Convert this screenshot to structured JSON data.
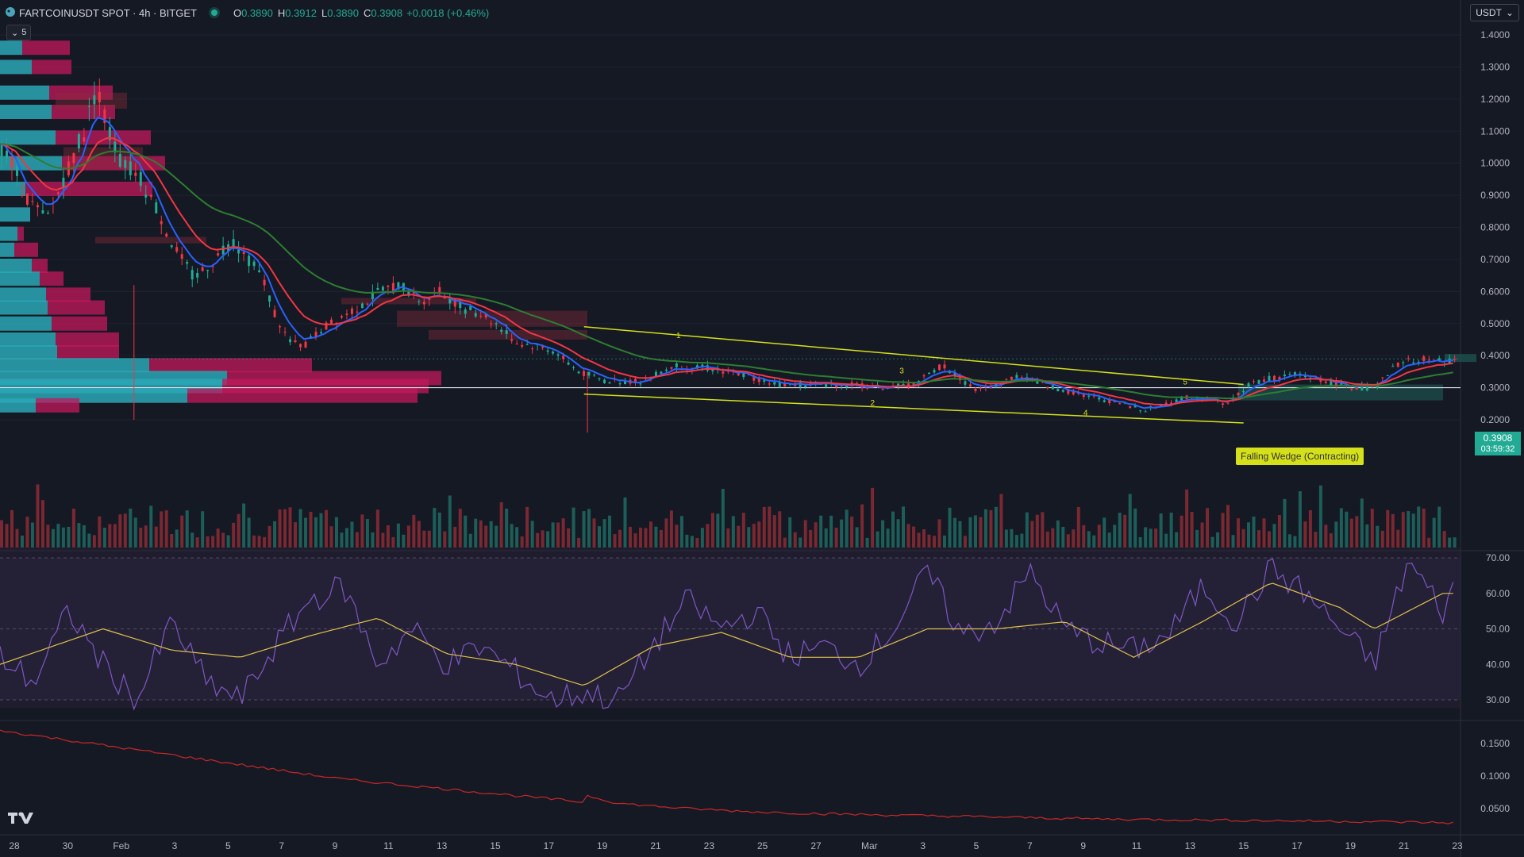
{
  "header": {
    "symbol": "FARTCOINUSDT SPOT · 4h · BITGET",
    "o_label": "O",
    "o": "0.3890",
    "h_label": "H",
    "h": "0.3912",
    "l_label": "L",
    "l": "0.3890",
    "c_label": "C",
    "c": "0.3908",
    "change": "+0.0018 (+0.46%)",
    "collapse_count": "5"
  },
  "currency": "USDT",
  "price_box": {
    "price": "0.3908",
    "countdown": "03:59:32"
  },
  "colors": {
    "bg": "#151924",
    "up": "#22ab94",
    "down": "#f23645",
    "ema_fast": "#2962ff",
    "ema_mid": "#f23645",
    "ema_slow": "#2e7d32",
    "wedge": "#d4e01a",
    "rsi": "#7e57c2",
    "rsi_ma": "#e0c14a",
    "sub": "#c62828"
  },
  "chart_data": [
    {
      "type": "candlestick",
      "title": "FARTCOINUSDT SPOT · 4h · BITGET",
      "y_ticks": [
        "1.4000",
        "1.3000",
        "1.2000",
        "1.1000",
        "1.0000",
        "0.9000",
        "0.8000",
        "0.7000",
        "0.6000",
        "0.5000",
        "0.4000",
        "0.3000",
        "0.2000"
      ],
      "y_values": [
        1.4,
        1.3,
        1.2,
        1.1,
        1.0,
        0.9,
        0.8,
        0.7,
        0.6,
        0.5,
        0.4,
        0.3,
        0.2
      ],
      "x_ticks": [
        "28",
        "30",
        "Feb",
        "3",
        "5",
        "7",
        "9",
        "11",
        "13",
        "15",
        "17",
        "19",
        "21",
        "23",
        "25",
        "27",
        "Mar",
        "3",
        "5",
        "7",
        "9",
        "11",
        "13",
        "15",
        "17",
        "19",
        "21",
        "23"
      ],
      "horizontal_line": 0.3,
      "annotations": [
        "Falling Wedge (Contracting)",
        "1",
        "2",
        "3",
        "4",
        "5"
      ],
      "price_path": [
        [
          0,
          1.05
        ],
        [
          6,
          1.0
        ],
        [
          16,
          0.88
        ],
        [
          26,
          0.82
        ],
        [
          36,
          0.95
        ],
        [
          48,
          1.1
        ],
        [
          56,
          1.25
        ],
        [
          62,
          1.1
        ],
        [
          70,
          1.0
        ],
        [
          80,
          0.96
        ],
        [
          92,
          0.84
        ],
        [
          100,
          0.74
        ],
        [
          112,
          0.64
        ],
        [
          124,
          0.7
        ],
        [
          134,
          0.76
        ],
        [
          144,
          0.7
        ],
        [
          152,
          0.64
        ],
        [
          160,
          0.52
        ],
        [
          168,
          0.44
        ],
        [
          176,
          0.43
        ],
        [
          186,
          0.48
        ],
        [
          200,
          0.53
        ],
        [
          210,
          0.56
        ],
        [
          220,
          0.6
        ],
        [
          232,
          0.62
        ],
        [
          244,
          0.57
        ],
        [
          256,
          0.6
        ],
        [
          268,
          0.55
        ],
        [
          280,
          0.53
        ],
        [
          290,
          0.49
        ],
        [
          300,
          0.44
        ],
        [
          310,
          0.43
        ],
        [
          320,
          0.42
        ],
        [
          336,
          0.35
        ],
        [
          352,
          0.32
        ],
        [
          372,
          0.32
        ],
        [
          392,
          0.37
        ],
        [
          412,
          0.36
        ],
        [
          432,
          0.34
        ],
        [
          452,
          0.31
        ],
        [
          472,
          0.31
        ],
        [
          492,
          0.31
        ],
        [
          512,
          0.3
        ],
        [
          532,
          0.31
        ],
        [
          548,
          0.37
        ],
        [
          558,
          0.33
        ],
        [
          568,
          0.29
        ],
        [
          580,
          0.31
        ],
        [
          592,
          0.34
        ],
        [
          606,
          0.31
        ],
        [
          620,
          0.29
        ],
        [
          636,
          0.27
        ],
        [
          652,
          0.25
        ],
        [
          666,
          0.23
        ],
        [
          678,
          0.25
        ],
        [
          690,
          0.27
        ],
        [
          700,
          0.27
        ],
        [
          714,
          0.25
        ],
        [
          726,
          0.31
        ],
        [
          740,
          0.33
        ],
        [
          754,
          0.34
        ],
        [
          766,
          0.33
        ],
        [
          778,
          0.31
        ],
        [
          788,
          0.3
        ],
        [
          800,
          0.3
        ],
        [
          812,
          0.37
        ],
        [
          824,
          0.39
        ],
        [
          836,
          0.38
        ],
        [
          848,
          0.39
        ]
      ],
      "wedge": {
        "upper": [
          [
            340,
            0.49
          ],
          [
            724,
            0.31
          ]
        ],
        "lower": [
          [
            340,
            0.28
          ],
          [
            724,
            0.19
          ]
        ]
      }
    },
    {
      "type": "line",
      "title": "RSI",
      "y_ticks": [
        "70.00",
        "60.00",
        "50.00",
        "40.00",
        "30.00"
      ],
      "y_values": [
        70,
        60,
        50,
        40,
        30
      ],
      "ylim": [
        25,
        72
      ],
      "rsi_path": [
        [
          0,
          42
        ],
        [
          20,
          35
        ],
        [
          40,
          55
        ],
        [
          60,
          40
        ],
        [
          80,
          30
        ],
        [
          100,
          52
        ],
        [
          120,
          35
        ],
        [
          140,
          30
        ],
        [
          160,
          45
        ],
        [
          180,
          58
        ],
        [
          200,
          62
        ],
        [
          220,
          40
        ],
        [
          240,
          50
        ],
        [
          260,
          40
        ],
        [
          280,
          45
        ],
        [
          300,
          38
        ],
        [
          320,
          30
        ],
        [
          340,
          32
        ],
        [
          360,
          30
        ],
        [
          380,
          45
        ],
        [
          400,
          58
        ],
        [
          420,
          50
        ],
        [
          440,
          55
        ],
        [
          460,
          42
        ],
        [
          480,
          45
        ],
        [
          500,
          40
        ],
        [
          520,
          50
        ],
        [
          540,
          66
        ],
        [
          560,
          48
        ],
        [
          580,
          52
        ],
        [
          600,
          66
        ],
        [
          620,
          50
        ],
        [
          640,
          46
        ],
        [
          660,
          44
        ],
        [
          680,
          48
        ],
        [
          700,
          62
        ],
        [
          720,
          52
        ],
        [
          740,
          67
        ],
        [
          760,
          60
        ],
        [
          780,
          50
        ],
        [
          800,
          40
        ],
        [
          820,
          69
        ],
        [
          840,
          55
        ],
        [
          848,
          63
        ]
      ],
      "ma_path": [
        [
          0,
          40
        ],
        [
          60,
          50
        ],
        [
          100,
          44
        ],
        [
          140,
          42
        ],
        [
          180,
          48
        ],
        [
          220,
          53
        ],
        [
          260,
          43
        ],
        [
          300,
          40
        ],
        [
          340,
          34
        ],
        [
          380,
          45
        ],
        [
          420,
          49
        ],
        [
          460,
          42
        ],
        [
          500,
          42
        ],
        [
          540,
          50
        ],
        [
          580,
          50
        ],
        [
          620,
          52
        ],
        [
          660,
          42
        ],
        [
          700,
          52
        ],
        [
          740,
          63
        ],
        [
          780,
          56
        ],
        [
          800,
          50
        ],
        [
          840,
          60
        ],
        [
          848,
          60
        ]
      ]
    },
    {
      "type": "line",
      "y_ticks": [
        "0.1500",
        "0.1000",
        "0.0500"
      ],
      "y_values": [
        0.15,
        0.1,
        0.05
      ],
      "ylim": [
        0.0,
        0.175
      ],
      "path": [
        [
          0,
          0.17
        ],
        [
          40,
          0.155
        ],
        [
          80,
          0.14
        ],
        [
          120,
          0.125
        ],
        [
          160,
          0.11
        ],
        [
          200,
          0.095
        ],
        [
          240,
          0.085
        ],
        [
          280,
          0.075
        ],
        [
          320,
          0.065
        ],
        [
          340,
          0.06
        ],
        [
          342,
          0.07
        ],
        [
          360,
          0.058
        ],
        [
          400,
          0.05
        ],
        [
          440,
          0.045
        ],
        [
          480,
          0.042
        ],
        [
          520,
          0.04
        ],
        [
          560,
          0.038
        ],
        [
          600,
          0.036
        ],
        [
          640,
          0.034
        ],
        [
          680,
          0.033
        ],
        [
          720,
          0.032
        ],
        [
          760,
          0.031
        ],
        [
          800,
          0.03
        ],
        [
          848,
          0.028
        ]
      ]
    }
  ]
}
